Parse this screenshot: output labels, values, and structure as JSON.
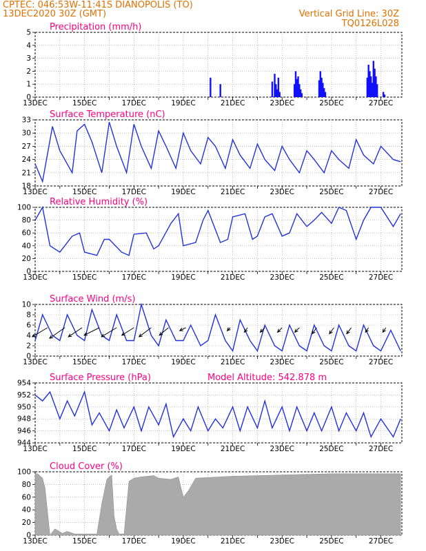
{
  "header": {
    "line1": "CPTEC:   046:53W-11:41S   DIANOPOLIS (TO)",
    "line2": "13DEC2020 30Z (GMT)",
    "right1": "Vertical Grid Line: 30Z",
    "right2": "TQ0126L028"
  },
  "colors": {
    "header": "#e07000",
    "title": "#ff0080",
    "line": "#2030e0",
    "bar": "#1010ff",
    "cloud": "#aaaaaa"
  },
  "x_ticks": [
    "13DEC",
    "15DEC",
    "17DEC",
    "19DEC",
    "21DEC",
    "23DEC",
    "25DEC",
    "27DEC"
  ],
  "panel_titles": {
    "precip": "Precipitation (mm/h)",
    "temp": "Surface Temperature (nC)",
    "rh": "Relative Humidity (%)",
    "wind": "Surface Wind (m/s)",
    "pres": "Surface Pressure (hPa)",
    "cloud": "Cloud Cover (%)"
  },
  "pressure_note": "Model Altitude: 542.878 m",
  "chart_data": [
    {
      "type": "bar",
      "key": "precip",
      "title": "Precipitation (mm/h)",
      "ylim": [
        0,
        5
      ],
      "yticks": [
        "0",
        "1",
        "2",
        "3",
        "4",
        "5"
      ],
      "x": [
        7.1,
        7.5,
        9.6,
        9.7,
        9.75,
        9.8,
        9.85,
        9.9,
        10.5,
        10.55,
        10.6,
        10.65,
        10.7,
        10.75,
        10.8,
        11.5,
        11.55,
        11.6,
        11.65,
        11.7,
        11.75,
        13.45,
        13.5,
        13.55,
        13.6,
        13.65,
        13.7,
        13.75,
        13.8,
        13.85,
        14.1,
        14.15
      ],
      "values": [
        1.5,
        1.0,
        1.2,
        1.8,
        1.0,
        0.6,
        1.5,
        0.4,
        1.0,
        2.0,
        1.4,
        1.6,
        1.0,
        0.6,
        0.3,
        1.3,
        2.0,
        1.5,
        1.1,
        0.7,
        0.4,
        1.5,
        2.5,
        2.0,
        1.6,
        1.1,
        2.8,
        2.2,
        1.6,
        1.0,
        0.4,
        0.2
      ]
    },
    {
      "type": "line",
      "key": "temp",
      "title": "Surface Temperature (nC)",
      "ylim": [
        18,
        33
      ],
      "yticks": [
        "18",
        "21",
        "24",
        "27",
        "30",
        "33"
      ],
      "x": [
        0,
        0.3,
        0.7,
        1.0,
        1.5,
        1.7,
        2.0,
        2.3,
        2.7,
        3.0,
        3.3,
        3.7,
        4.0,
        4.3,
        4.7,
        5.0,
        5.3,
        5.7,
        6.0,
        6.3,
        6.7,
        7.0,
        7.3,
        7.7,
        8.0,
        8.3,
        8.7,
        9.0,
        9.3,
        9.7,
        10.0,
        10.3,
        10.7,
        11.0,
        11.3,
        11.7,
        12.0,
        12.3,
        12.7,
        13.0,
        13.3,
        13.7,
        14.0,
        14.5,
        14.8
      ],
      "y": [
        23,
        19,
        31.5,
        26,
        21,
        30.5,
        32,
        28,
        21,
        32.5,
        27,
        21,
        32,
        27,
        22,
        30.5,
        27,
        22,
        30,
        26,
        23,
        29,
        27,
        22,
        28.5,
        25,
        22,
        27.5,
        24,
        21.5,
        27,
        24,
        21,
        26,
        24,
        21,
        26,
        24,
        22,
        28.5,
        25,
        23,
        27,
        24,
        23.5
      ]
    },
    {
      "type": "line",
      "key": "rh",
      "title": "Relative Humidity (%)",
      "ylim": [
        0,
        100
      ],
      "yticks": [
        "0",
        "20",
        "40",
        "60",
        "80",
        "100"
      ],
      "x": [
        0,
        0.3,
        0.6,
        1.0,
        1.5,
        1.8,
        2.0,
        2.5,
        2.8,
        3.0,
        3.5,
        3.8,
        4.0,
        4.5,
        4.8,
        5.0,
        5.5,
        5.8,
        6.0,
        6.5,
        6.8,
        7.0,
        7.5,
        7.8,
        8.0,
        8.5,
        8.8,
        9.0,
        9.3,
        9.6,
        10.0,
        10.3,
        10.6,
        11.0,
        11.3,
        11.6,
        12.0,
        12.3,
        12.6,
        13.0,
        13.3,
        13.6,
        14.0,
        14.5,
        14.8
      ],
      "y": [
        80,
        100,
        40,
        30,
        55,
        60,
        30,
        25,
        50,
        50,
        30,
        25,
        58,
        60,
        35,
        40,
        75,
        90,
        40,
        45,
        80,
        95,
        45,
        50,
        85,
        90,
        50,
        55,
        85,
        90,
        55,
        60,
        90,
        70,
        80,
        92,
        75,
        100,
        95,
        50,
        80,
        100,
        100,
        70,
        90
      ]
    },
    {
      "type": "line",
      "key": "wind",
      "title": "Surface Wind (m/s)",
      "ylim": [
        0,
        10
      ],
      "yticks": [
        "0",
        "2",
        "4",
        "6",
        "8",
        "10"
      ],
      "x": [
        0,
        0.3,
        0.7,
        1.0,
        1.3,
        1.7,
        2.0,
        2.3,
        2.7,
        3.0,
        3.3,
        3.7,
        4.0,
        4.3,
        4.7,
        5.0,
        5.3,
        5.7,
        6.0,
        6.3,
        6.7,
        7.0,
        7.3,
        7.7,
        8.0,
        8.3,
        8.7,
        9.0,
        9.3,
        9.7,
        10.0,
        10.3,
        10.7,
        11.0,
        11.3,
        11.7,
        12.0,
        12.3,
        12.7,
        13.0,
        13.3,
        13.7,
        14.0,
        14.4,
        14.8
      ],
      "y": [
        3,
        8,
        4,
        3,
        8,
        4,
        3,
        9,
        4,
        3,
        8,
        3,
        3,
        10,
        4,
        2,
        7,
        3,
        3,
        6,
        2,
        3,
        8,
        3,
        1,
        7,
        3,
        1,
        6,
        2,
        1,
        6,
        2,
        1,
        6,
        2,
        1,
        6,
        2,
        1,
        6,
        2,
        1,
        5,
        1
      ],
      "arrows": [
        [
          0.5,
          -1.0,
          -0.6
        ],
        [
          1.2,
          -1.0,
          -0.7
        ],
        [
          1.9,
          -0.9,
          -0.6
        ],
        [
          2.6,
          -1.0,
          -0.5
        ],
        [
          3.3,
          -1.0,
          -0.6
        ],
        [
          4.0,
          -0.8,
          -0.5
        ],
        [
          4.7,
          -0.8,
          -0.6
        ],
        [
          5.4,
          -0.6,
          -0.5
        ],
        [
          6.1,
          -0.4,
          -0.2
        ],
        [
          7.9,
          -0.2,
          -0.2
        ],
        [
          8.6,
          -0.2,
          -0.3
        ],
        [
          9.3,
          -0.3,
          -0.3
        ],
        [
          10.0,
          -0.3,
          -0.3
        ],
        [
          10.7,
          -0.3,
          -0.3
        ],
        [
          11.4,
          -0.3,
          -0.4
        ],
        [
          12.1,
          -0.3,
          -0.4
        ],
        [
          12.8,
          -0.3,
          -0.4
        ],
        [
          13.5,
          -0.2,
          -0.3
        ],
        [
          14.2,
          -0.2,
          -0.3
        ]
      ]
    },
    {
      "type": "line",
      "key": "pres",
      "title": "Surface Pressure (hPa)",
      "ylim": [
        944,
        954
      ],
      "yticks": [
        "944",
        "946",
        "948",
        "950",
        "952",
        "954"
      ],
      "x": [
        0,
        0.3,
        0.6,
        1.0,
        1.3,
        1.6,
        2.0,
        2.3,
        2.6,
        3.0,
        3.3,
        3.6,
        4.0,
        4.3,
        4.6,
        5.0,
        5.3,
        5.6,
        6.0,
        6.3,
        6.6,
        7.0,
        7.3,
        7.6,
        8.0,
        8.3,
        8.6,
        9.0,
        9.3,
        9.6,
        10.0,
        10.3,
        10.6,
        11.0,
        11.3,
        11.6,
        12.0,
        12.3,
        12.6,
        13.0,
        13.3,
        13.6,
        14.0,
        14.5,
        14.8
      ],
      "y": [
        952,
        951,
        952.5,
        948,
        951,
        948.5,
        952.5,
        947,
        949,
        946,
        949.5,
        946.5,
        950,
        946,
        950,
        947,
        950.5,
        945,
        948,
        946,
        950,
        946,
        948,
        946.5,
        950,
        946,
        950,
        946.5,
        951,
        946.5,
        950,
        946,
        950,
        946,
        949,
        946,
        950,
        946,
        949,
        946,
        949,
        945,
        948,
        945,
        948
      ]
    },
    {
      "type": "area",
      "key": "cloud",
      "title": "Cloud Cover (%)",
      "ylim": [
        0,
        100
      ],
      "yticks": [
        "0",
        "20",
        "40",
        "60",
        "80",
        "100"
      ],
      "x": [
        0,
        0.1,
        0.3,
        0.4,
        0.6,
        0.8,
        1.1,
        1.3,
        1.6,
        2.5,
        2.7,
        2.9,
        3.0,
        3.1,
        3.2,
        3.3,
        3.4,
        3.6,
        3.8,
        4.0,
        4.3,
        4.8,
        5.0,
        5.5,
        5.8,
        6.0,
        6.2,
        6.5,
        7.0,
        8.0,
        9.0,
        10.0,
        11.0,
        12.0,
        13.0,
        14.0,
        14.8
      ],
      "y": [
        97,
        97,
        90,
        75,
        0,
        10,
        3,
        6,
        2,
        2,
        50,
        88,
        92,
        95,
        30,
        10,
        2,
        2,
        85,
        90,
        92,
        94,
        90,
        88,
        92,
        60,
        70,
        90,
        91,
        93,
        94,
        95,
        96,
        97,
        97,
        97,
        97
      ]
    }
  ]
}
